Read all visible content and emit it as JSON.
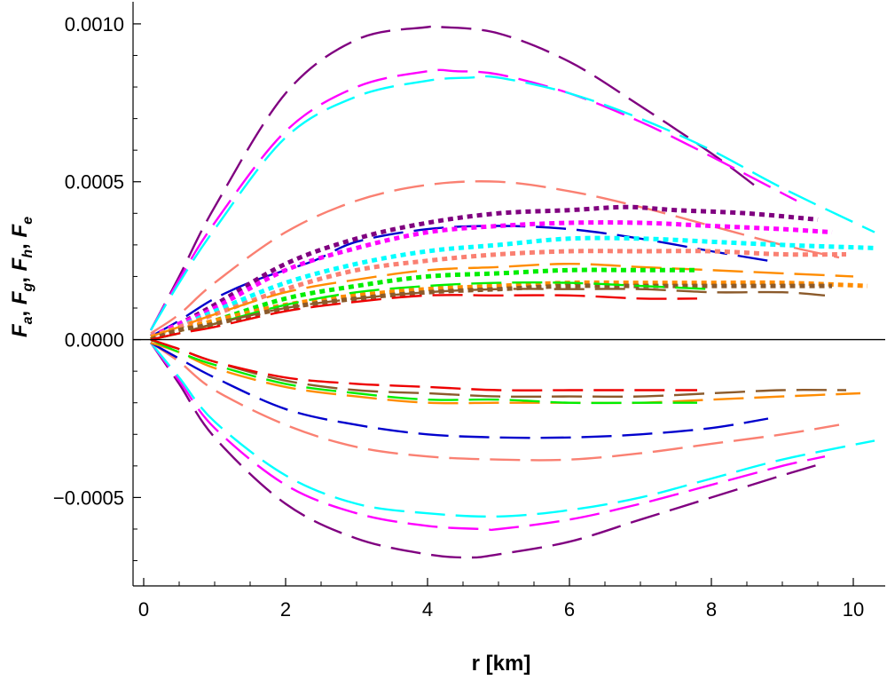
{
  "chart_data": {
    "type": "line",
    "title": "",
    "xlabel": "r [km]",
    "ylabel": "F_a, F_g, F_h, F_e",
    "xlim": [
      -0.15,
      10.45
    ],
    "ylim": [
      -0.00078,
      0.00107
    ],
    "x_ticks": [
      {
        "value": 0,
        "label": "0"
      },
      {
        "value": 2,
        "label": "2"
      },
      {
        "value": 4,
        "label": "4"
      },
      {
        "value": 6,
        "label": "6"
      },
      {
        "value": 8,
        "label": "8"
      },
      {
        "value": 10,
        "label": "10"
      }
    ],
    "y_ticks": [
      {
        "value": 0.001,
        "label": "0.0010"
      },
      {
        "value": 0.0005,
        "label": "0.0005"
      },
      {
        "value": 0.0,
        "label": "0.0000"
      },
      {
        "value": -0.0005,
        "label": "−0.0005"
      }
    ],
    "grid": false,
    "legend": "none",
    "zero_line_color": "#000000",
    "series": [
      {
        "color": "#800080",
        "style": "longdash",
        "x": [
          0.1,
          0.5,
          1.0,
          2.0,
          3.0,
          4.0,
          4.2,
          5.0,
          6.0,
          7.0,
          8.0,
          8.6
        ],
        "y": [
          3e-05,
          0.0002,
          0.00042,
          0.00078,
          0.00095,
          0.00099,
          0.00099,
          0.00097,
          0.00088,
          0.00074,
          0.00059,
          0.00049
        ]
      },
      {
        "color": "#ff00ff",
        "style": "longdash",
        "x": [
          0.1,
          0.5,
          1.0,
          2.0,
          3.0,
          4.0,
          4.4,
          5.0,
          6.0,
          7.0,
          8.0,
          9.2
        ],
        "y": [
          3e-05,
          0.00019,
          0.00037,
          0.00066,
          0.0008,
          0.00085,
          0.00085,
          0.00084,
          0.00078,
          0.00069,
          0.00058,
          0.00044
        ]
      },
      {
        "color": "#00ffff",
        "style": "longdash",
        "x": [
          0.1,
          0.5,
          1.0,
          2.0,
          3.0,
          4.0,
          4.6,
          5.0,
          6.0,
          7.0,
          8.0,
          9.0,
          10.3
        ],
        "y": [
          3e-05,
          0.00018,
          0.00035,
          0.00064,
          0.00077,
          0.00082,
          0.00083,
          0.00083,
          0.00078,
          0.0007,
          0.0006,
          0.00048,
          0.00034
        ]
      },
      {
        "color": "#fa8072",
        "style": "longdash",
        "x": [
          0.1,
          0.5,
          1.0,
          2.0,
          3.0,
          4.0,
          5.0,
          6.0,
          7.0,
          8.0,
          9.0,
          9.8
        ],
        "y": [
          2e-05,
          8e-05,
          0.00018,
          0.00034,
          0.00044,
          0.00049,
          0.0005,
          0.00047,
          0.00042,
          0.00036,
          0.0003,
          0.00026
        ]
      },
      {
        "color": "#0000cd",
        "style": "longdash",
        "x": [
          0.1,
          0.5,
          1.0,
          1.6,
          2.4,
          3.0,
          4.0,
          5.0,
          6.0,
          7.0,
          8.0,
          8.8
        ],
        "y": [
          1e-05,
          6e-05,
          0.00013,
          0.00019,
          0.00025,
          0.00031,
          0.00035,
          0.00036,
          0.00035,
          0.00032,
          0.00028,
          0.00025
        ]
      },
      {
        "color": "#800080",
        "style": "dotted",
        "x": [
          0.1,
          0.5,
          1.0,
          2.0,
          3.0,
          4.0,
          5.0,
          6.0,
          6.8,
          7.5,
          8.5,
          9.5
        ],
        "y": [
          1e-05,
          5e-05,
          0.00011,
          0.00024,
          0.00032,
          0.00037,
          0.0004,
          0.00041,
          0.00042,
          0.00041,
          0.0004,
          0.00038
        ]
      },
      {
        "color": "#ff00ff",
        "style": "dotted",
        "x": [
          0.1,
          0.5,
          1.0,
          2.0,
          3.0,
          4.0,
          5.0,
          6.0,
          7.0,
          8.0,
          9.0,
          9.7
        ],
        "y": [
          1e-05,
          5e-05,
          0.0001,
          0.00022,
          0.00029,
          0.00034,
          0.00036,
          0.00037,
          0.00037,
          0.00036,
          0.00035,
          0.00034
        ]
      },
      {
        "color": "#00ffff",
        "style": "dotted",
        "x": [
          0.1,
          0.5,
          1.0,
          2.0,
          3.0,
          4.0,
          5.0,
          6.0,
          7.0,
          8.0,
          9.0,
          10.3
        ],
        "y": [
          1e-05,
          4e-05,
          9e-05,
          0.00018,
          0.00024,
          0.00028,
          0.0003,
          0.00032,
          0.00032,
          0.00031,
          0.0003,
          0.00029
        ]
      },
      {
        "color": "#fa8072",
        "style": "dotted",
        "x": [
          0.1,
          0.5,
          1.0,
          2.0,
          3.0,
          4.0,
          5.0,
          6.0,
          7.0,
          8.0,
          9.0,
          9.9
        ],
        "y": [
          1e-05,
          4e-05,
          8e-05,
          0.00016,
          0.00022,
          0.00025,
          0.00027,
          0.00028,
          0.00028,
          0.00028,
          0.00027,
          0.00027
        ]
      },
      {
        "color": "#ff8c00",
        "style": "longdash",
        "x": [
          0.1,
          0.5,
          1.0,
          2.0,
          3.0,
          4.0,
          5.0,
          6.0,
          7.0,
          8.0,
          9.0,
          10.0
        ],
        "y": [
          1e-05,
          4e-05,
          8e-05,
          0.00015,
          0.00019,
          0.00022,
          0.00023,
          0.00024,
          0.00023,
          0.00022,
          0.00021,
          0.0002
        ]
      },
      {
        "color": "#00ee00",
        "style": "dotted",
        "x": [
          0.1,
          0.5,
          1.0,
          2.0,
          3.0,
          4.0,
          5.0,
          6.0,
          7.0,
          7.8
        ],
        "y": [
          0.0,
          3e-05,
          6e-05,
          0.00013,
          0.00017,
          0.0002,
          0.00021,
          0.00022,
          0.00022,
          0.00022
        ]
      },
      {
        "color": "#ff8c00",
        "style": "dotted",
        "x": [
          0.1,
          0.5,
          1.0,
          2.0,
          3.0,
          4.0,
          5.0,
          6.0,
          7.0,
          8.0,
          9.0,
          10.2
        ],
        "y": [
          0.0,
          3e-05,
          6e-05,
          0.00011,
          0.00014,
          0.00016,
          0.00017,
          0.00018,
          0.00018,
          0.00018,
          0.00018,
          0.00017
        ]
      },
      {
        "color": "#8b5a2b",
        "style": "dotted",
        "x": [
          0.1,
          0.5,
          1.0,
          2.0,
          3.0,
          4.0,
          5.0,
          6.0,
          7.0,
          8.0,
          9.0,
          9.7
        ],
        "y": [
          0.0,
          3e-05,
          5e-05,
          0.0001,
          0.00013,
          0.00015,
          0.00016,
          0.00017,
          0.00017,
          0.00017,
          0.00017,
          0.00017
        ]
      },
      {
        "color": "#00ee00",
        "style": "longdash",
        "x": [
          0.1,
          0.5,
          1.0,
          2.0,
          3.0,
          4.0,
          5.0,
          6.0,
          7.0,
          8.0
        ],
        "y": [
          0.0,
          2e-05,
          5e-05,
          0.00011,
          0.00015,
          0.00017,
          0.00018,
          0.00018,
          0.00017,
          0.00016
        ]
      },
      {
        "color": "#8b5a2b",
        "style": "longdash",
        "x": [
          0.1,
          0.5,
          1.0,
          2.0,
          3.0,
          4.0,
          5.0,
          6.0,
          7.0,
          8.0,
          9.0,
          9.6
        ],
        "y": [
          0.0,
          2e-05,
          5e-05,
          0.0001,
          0.00013,
          0.00015,
          0.00016,
          0.00016,
          0.00016,
          0.00015,
          0.00015,
          0.00014
        ]
      },
      {
        "color": "#ee0000",
        "style": "longdash",
        "x": [
          0.1,
          0.5,
          1.0,
          2.0,
          3.0,
          4.0,
          5.0,
          6.0,
          7.0,
          7.8
        ],
        "y": [
          0.0,
          2e-05,
          4e-05,
          9e-05,
          0.00012,
          0.00014,
          0.00014,
          0.00014,
          0.00013,
          0.00013
        ]
      },
      {
        "color": "#800080",
        "style": "longdash",
        "x": [
          0.1,
          0.5,
          1.0,
          2.0,
          3.0,
          4.0,
          4.6,
          5.0,
          6.0,
          7.0,
          8.0,
          9.0,
          9.6
        ],
        "y": [
          -1e-05,
          -0.00014,
          -0.00031,
          -0.00052,
          -0.00063,
          -0.00068,
          -0.00069,
          -0.00068,
          -0.00064,
          -0.00057,
          -0.0005,
          -0.00043,
          -0.00039
        ]
      },
      {
        "color": "#ff00ff",
        "style": "longdash",
        "x": [
          0.1,
          0.5,
          1.0,
          2.0,
          3.0,
          4.0,
          4.8,
          5.0,
          6.0,
          7.0,
          8.0,
          9.0,
          9.6
        ],
        "y": [
          -1e-05,
          -0.00013,
          -0.00028,
          -0.00046,
          -0.00055,
          -0.00059,
          -0.0006,
          -0.0006,
          -0.00057,
          -0.00052,
          -0.00046,
          -0.0004,
          -0.00037
        ]
      },
      {
        "color": "#00ffff",
        "style": "longdash",
        "x": [
          0.1,
          0.5,
          1.0,
          2.0,
          3.0,
          4.0,
          5.0,
          6.0,
          7.0,
          8.0,
          9.0,
          10.3
        ],
        "y": [
          -1e-05,
          -0.00012,
          -0.00026,
          -0.00043,
          -0.00052,
          -0.00055,
          -0.00056,
          -0.00054,
          -0.0005,
          -0.00044,
          -0.00038,
          -0.00032
        ]
      },
      {
        "color": "#fa8072",
        "style": "longdash",
        "x": [
          0.1,
          0.5,
          1.0,
          2.0,
          3.0,
          4.0,
          5.0,
          6.0,
          7.0,
          8.0,
          9.0,
          9.8
        ],
        "y": [
          -1e-05,
          -7e-05,
          -0.00016,
          -0.00027,
          -0.00034,
          -0.00037,
          -0.00038,
          -0.00038,
          -0.00036,
          -0.00033,
          -0.0003,
          -0.00027
        ]
      },
      {
        "color": "#0000cd",
        "style": "longdash",
        "x": [
          0.1,
          0.5,
          1.0,
          2.0,
          3.0,
          4.0,
          5.0,
          6.0,
          7.0,
          8.0,
          8.8
        ],
        "y": [
          -1e-05,
          -6e-05,
          -0.00012,
          -0.00022,
          -0.00027,
          -0.0003,
          -0.00031,
          -0.00031,
          -0.0003,
          -0.00028,
          -0.00025
        ]
      },
      {
        "color": "#ff8c00",
        "style": "longdash",
        "x": [
          0.1,
          0.5,
          1.0,
          2.0,
          3.0,
          4.0,
          5.0,
          6.0,
          7.0,
          8.0,
          9.0,
          10.1
        ],
        "y": [
          -1e-05,
          -4e-05,
          -9e-05,
          -0.00015,
          -0.00018,
          -0.0002,
          -0.0002,
          -0.0002,
          -0.0002,
          -0.00019,
          -0.00018,
          -0.00017
        ]
      },
      {
        "color": "#00ee00",
        "style": "longdash",
        "x": [
          0.1,
          0.5,
          1.0,
          2.0,
          3.0,
          4.0,
          5.0,
          6.0,
          7.0,
          7.8
        ],
        "y": [
          0.0,
          -4e-05,
          -8e-05,
          -0.00014,
          -0.00017,
          -0.00019,
          -0.00019,
          -0.0002,
          -0.0002,
          -0.0002
        ]
      },
      {
        "color": "#8b5a2b",
        "style": "longdash",
        "x": [
          0.1,
          0.5,
          1.0,
          2.0,
          3.0,
          4.0,
          5.0,
          6.0,
          7.0,
          8.0,
          9.0,
          9.9
        ],
        "y": [
          0.0,
          -3e-05,
          -7e-05,
          -0.00013,
          -0.00016,
          -0.00017,
          -0.00018,
          -0.00018,
          -0.00018,
          -0.00017,
          -0.00016,
          -0.00016
        ]
      },
      {
        "color": "#ee0000",
        "style": "longdash",
        "x": [
          0.1,
          0.5,
          1.0,
          2.0,
          3.0,
          4.0,
          5.0,
          6.0,
          7.0,
          7.8
        ],
        "y": [
          0.0,
          -3e-05,
          -7e-05,
          -0.00012,
          -0.00014,
          -0.00015,
          -0.00016,
          -0.00016,
          -0.00016,
          -0.00016
        ]
      }
    ]
  }
}
